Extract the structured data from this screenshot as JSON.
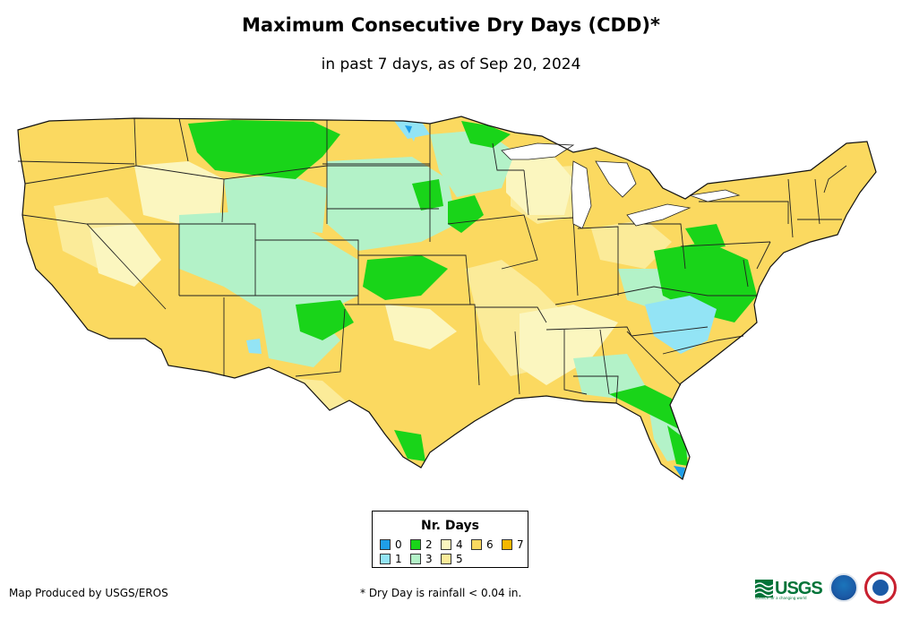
{
  "header": {
    "title": "Maximum Consecutive Dry Days (CDD)*",
    "subtitle": "in past 7 days, as of Sep 20, 2024"
  },
  "legend": {
    "title": "Nr. Days",
    "items": [
      {
        "label": "0",
        "color": "#1f9ee8"
      },
      {
        "label": "1",
        "color": "#93e4f5"
      },
      {
        "label": "2",
        "color": "#19d419"
      },
      {
        "label": "3",
        "color": "#b3f2c8"
      },
      {
        "label": "4",
        "color": "#fbf6bf"
      },
      {
        "label": "5",
        "color": "#fbeb99"
      },
      {
        "label": "6",
        "color": "#fbd960"
      },
      {
        "label": "7",
        "color": "#f5b700"
      }
    ]
  },
  "footer": {
    "credit": "Map Produced by USGS/EROS",
    "note": "* Dry Day is rainfall < 0.04 in."
  },
  "logos": {
    "usgs": "USGS",
    "usgs_tagline": "science for a changing world"
  }
}
